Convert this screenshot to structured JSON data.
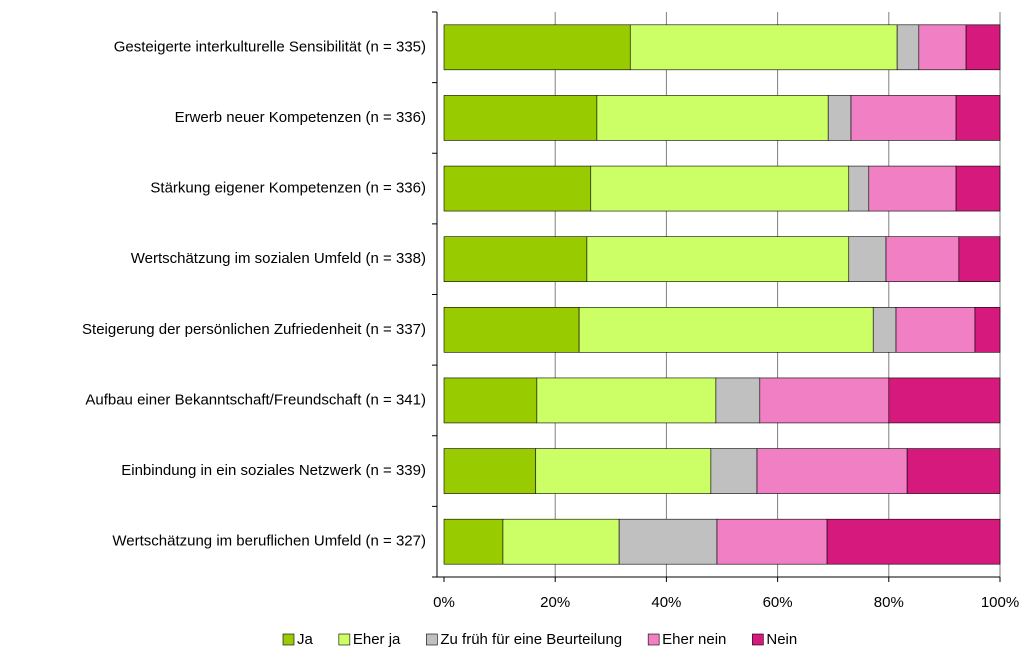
{
  "chart_data": {
    "type": "stacked_barh",
    "categories": [
      "Gesteigerte interkulturelle Sensibilität (n = 335)",
      "Erwerb neuer Kompetenzen (n = 336)",
      "Stärkung eigener Kompetenzen (n = 336)",
      "Wertschätzung im sozialen Umfeld (n = 338)",
      "Steigerung der persönlichen Zufriedenheit (n = 337)",
      "Aufbau einer Bekanntschaft/Freundschaft (n = 341)",
      "Einbindung in ein soziales Netzwerk (n = 339)",
      "Wertschätzung im beruflichen Umfeld (n = 327)"
    ],
    "series": [
      {
        "name": "Ja",
        "color": "#99cc00",
        "values": [
          33.5,
          27.5,
          26.4,
          25.7,
          24.3,
          16.7,
          16.5,
          10.6
        ]
      },
      {
        "name": "Eher ja",
        "color": "#ccff66",
        "values": [
          48.0,
          41.6,
          46.4,
          47.1,
          52.9,
          32.2,
          31.5,
          20.9
        ]
      },
      {
        "name": "Zu früh für eine Beurteilung",
        "color": "#c0c0c0",
        "values": [
          3.9,
          4.1,
          3.6,
          6.7,
          4.1,
          7.9,
          8.3,
          17.6
        ]
      },
      {
        "name": "Eher nein",
        "color": "#f07fc4",
        "values": [
          8.5,
          18.9,
          15.7,
          13.1,
          14.2,
          23.2,
          27.0,
          19.8
        ]
      },
      {
        "name": "Nein",
        "color": "#d6197c",
        "values": [
          6.1,
          7.9,
          7.9,
          7.4,
          4.5,
          20.0,
          16.7,
          31.1
        ]
      }
    ],
    "xlim": [
      0,
      100
    ],
    "xticks": [
      {
        "value": 0,
        "label": "0%"
      },
      {
        "value": 20,
        "label": "20%"
      },
      {
        "value": 40,
        "label": "40%"
      },
      {
        "value": 60,
        "label": "60%"
      },
      {
        "value": 80,
        "label": "80%"
      },
      {
        "value": 100,
        "label": "100%"
      }
    ],
    "grid": true,
    "legend": "bottom"
  }
}
